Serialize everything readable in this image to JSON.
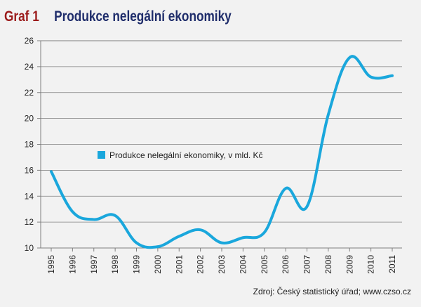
{
  "header": {
    "graf_label": "Graf 1",
    "title": "Produkce nelegální ekonomiky"
  },
  "source": "Zdroj: Český statistický úřad; www.czso.cz",
  "colors": {
    "line": "#1aa7dc",
    "graf_label": "#9b1b1b",
    "title": "#1f2d6b",
    "grid": "#808080",
    "background": "#f2f2f2"
  },
  "chart_data": {
    "type": "line",
    "title": "Produkce nelegální ekonomiky",
    "xlabel": "",
    "ylabel": "",
    "x": [
      "1995",
      "1996",
      "1997",
      "1998",
      "1999",
      "2000",
      "2001",
      "2002",
      "2003",
      "2004",
      "2005",
      "2006",
      "2007",
      "2008",
      "2009",
      "2010",
      "2011"
    ],
    "yticks": [
      10,
      12,
      14,
      16,
      18,
      20,
      22,
      24,
      26
    ],
    "ylim": [
      10,
      26
    ],
    "grid": "horizontal",
    "legend_position": "inside-left",
    "series": [
      {
        "name": "Produkce nelegální ekonomiky, v mld. Kč",
        "values": [
          15.9,
          12.8,
          12.2,
          12.5,
          10.4,
          10.1,
          10.9,
          11.4,
          10.4,
          10.8,
          11.2,
          14.6,
          13.2,
          20.3,
          24.7,
          23.2,
          23.3
        ]
      }
    ]
  }
}
